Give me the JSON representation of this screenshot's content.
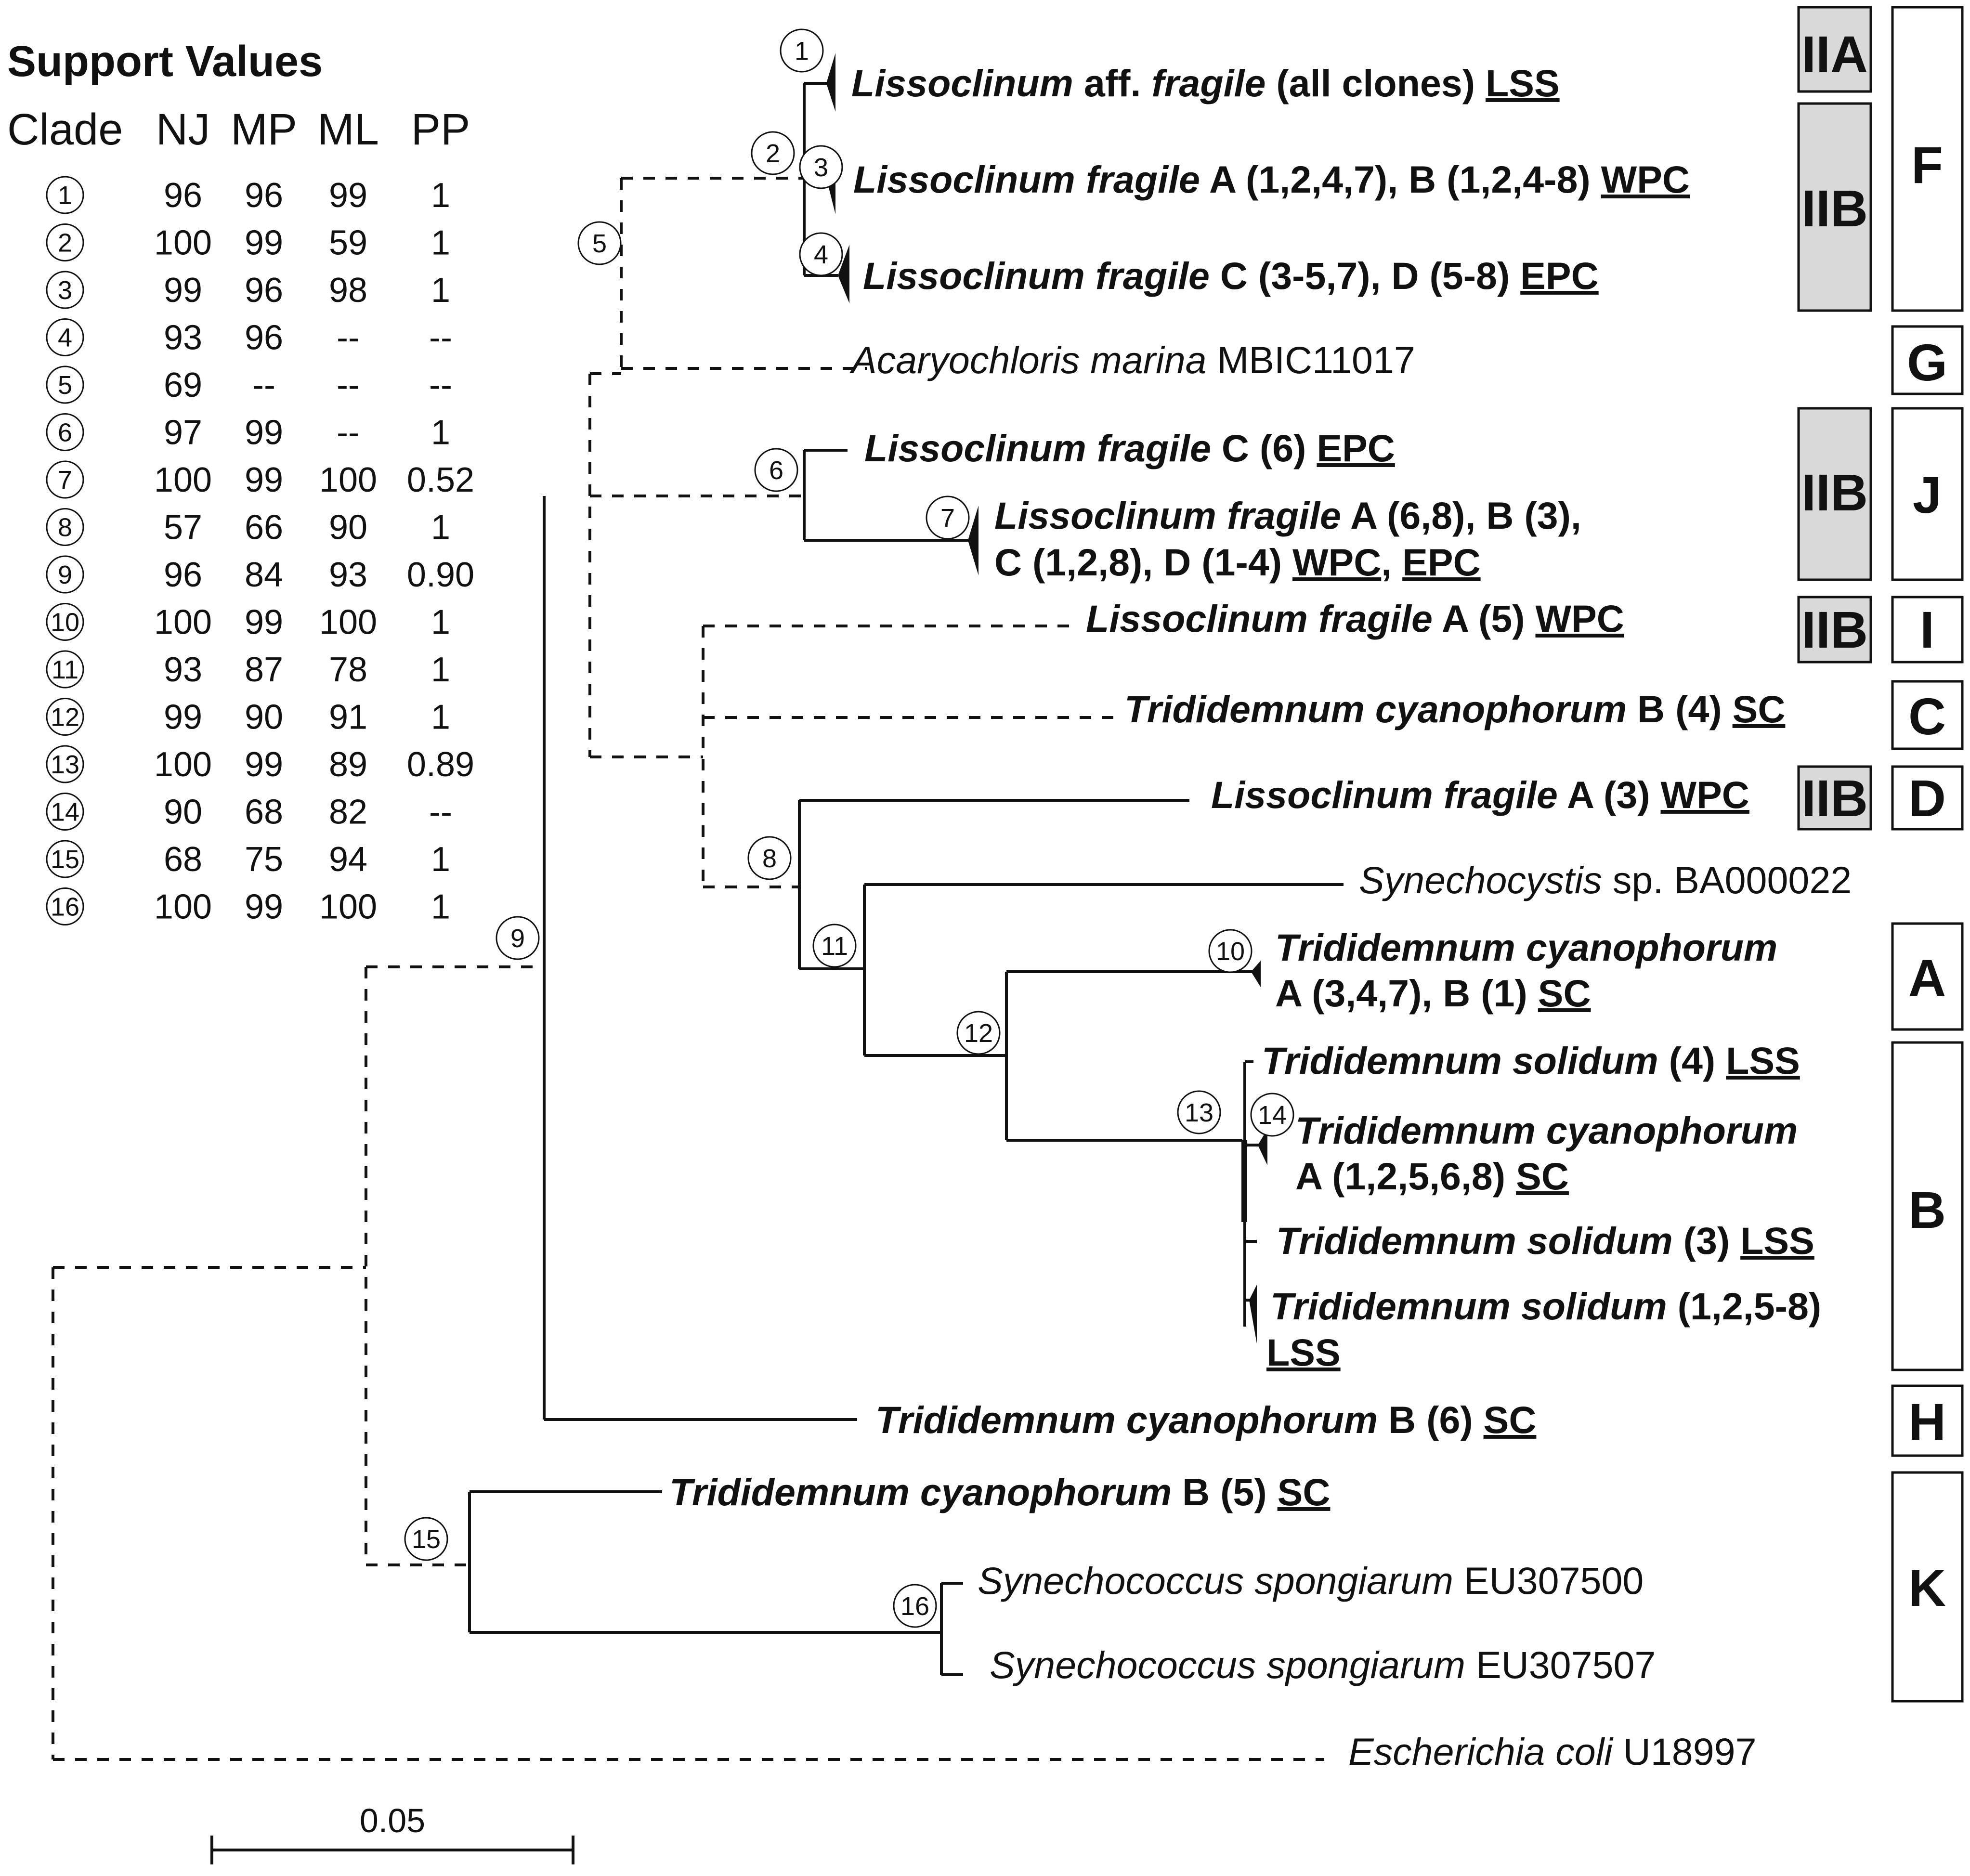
{
  "support_table": {
    "title": "Support Values",
    "headers": [
      "Clade",
      "NJ",
      "MP",
      "ML",
      "PP"
    ],
    "rows": [
      {
        "clade": "1",
        "nj": "96",
        "mp": "96",
        "ml": "99",
        "pp": "1"
      },
      {
        "clade": "2",
        "nj": "100",
        "mp": "99",
        "ml": "59",
        "pp": "1"
      },
      {
        "clade": "3",
        "nj": "99",
        "mp": "96",
        "ml": "98",
        "pp": "1"
      },
      {
        "clade": "4",
        "nj": "93",
        "mp": "96",
        "ml": "--",
        "pp": "--"
      },
      {
        "clade": "5",
        "nj": "69",
        "mp": "--",
        "ml": "--",
        "pp": "--"
      },
      {
        "clade": "6",
        "nj": "97",
        "mp": "99",
        "ml": "--",
        "pp": "1"
      },
      {
        "clade": "7",
        "nj": "100",
        "mp": "99",
        "ml": "100",
        "pp": "0.52"
      },
      {
        "clade": "8",
        "nj": "57",
        "mp": "66",
        "ml": "90",
        "pp": "1"
      },
      {
        "clade": "9",
        "nj": "96",
        "mp": "84",
        "ml": "93",
        "pp": "0.90"
      },
      {
        "clade": "10",
        "nj": "100",
        "mp": "99",
        "ml": "100",
        "pp": "1"
      },
      {
        "clade": "11",
        "nj": "93",
        "mp": "87",
        "ml": "78",
        "pp": "1"
      },
      {
        "clade": "12",
        "nj": "99",
        "mp": "90",
        "ml": "91",
        "pp": "1"
      },
      {
        "clade": "13",
        "nj": "100",
        "mp": "99",
        "ml": "89",
        "pp": "0.89"
      },
      {
        "clade": "14",
        "nj": "90",
        "mp": "68",
        "ml": "82",
        "pp": "--"
      },
      {
        "clade": "15",
        "nj": "68",
        "mp": "75",
        "ml": "94",
        "pp": "1"
      },
      {
        "clade": "16",
        "nj": "100",
        "mp": "99",
        "ml": "100",
        "pp": "1"
      }
    ]
  },
  "taxa": {
    "t1": {
      "species": "Lissoclinum",
      "rest": " aff. ",
      "species2": "fragile",
      "detail": " (all clones) ",
      "site": "LSS"
    },
    "t2": {
      "species": "Lissoclinum fragile",
      "detail": " A (1,2,4,7), B (1,2,4-8) ",
      "site": "WPC"
    },
    "t3": {
      "species": "Lissoclinum fragile",
      "detail": " C (3-5,7), D (5-8) ",
      "site": "EPC"
    },
    "t4": {
      "species": "Acaryochloris marina",
      "detail": " MBIC11017"
    },
    "t5": {
      "species": "Lissoclinum fragile",
      "detail": " C (6) ",
      "site": "EPC"
    },
    "t6": {
      "species": "Lissoclinum fragile",
      "detail": " A (6,8), B (3),",
      "line2": "C (1,2,8), D (1-4) ",
      "site": "WPC",
      "sep": ", ",
      "site2": "EPC"
    },
    "t7": {
      "species": "Lissoclinum fragile",
      "detail": " A (5) ",
      "site": "WPC"
    },
    "t8": {
      "species": "Trididemnum cyanophorum",
      "detail": " B (4) ",
      "site": "SC"
    },
    "t9": {
      "species": "Lissoclinum fragile",
      "detail": " A (3) ",
      "site": "WPC"
    },
    "t10": {
      "species": "Synechocystis",
      "detail": " sp. BA000022"
    },
    "t11": {
      "species": "Trididemnum cyanophorum",
      "line2": "A (3,4,7), B (1) ",
      "site": "SC"
    },
    "t12": {
      "species": "Trididemnum solidum",
      "detail": " (4) ",
      "site": "LSS"
    },
    "t13": {
      "species": "Trididemnum cyanophorum",
      "line2": "A (1,2,5,6,8) ",
      "site": "SC"
    },
    "t14": {
      "species": "Trididemnum solidum",
      "detail": " (3) ",
      "site": "LSS"
    },
    "t15": {
      "species": "Trididemnum solidum",
      "detail": " (1,2,5-8)",
      "site": "LSS"
    },
    "t16": {
      "species": "Trididemnum cyanophorum",
      "detail": " B (6) ",
      "site": "SC"
    },
    "t17": {
      "species": "Trididemnum cyanophorum",
      "detail": " B (5) ",
      "site": "SC"
    },
    "t18": {
      "species": "Synechococcus spongiarum",
      "detail": " EU307500"
    },
    "t19": {
      "species": "Synechococcus spongiarum",
      "detail": " EU307507"
    },
    "t20": {
      "species": "Escherichia coli",
      "detail": " U18997"
    }
  },
  "node_labels": [
    "1",
    "2",
    "3",
    "4",
    "5",
    "6",
    "7",
    "8",
    "9",
    "10",
    "11",
    "12",
    "13",
    "14",
    "15",
    "16"
  ],
  "clade_boxes": {
    "F": "F",
    "G": "G",
    "J": "J",
    "I": "I",
    "C": "C",
    "D": "D",
    "A": "A",
    "B": "B",
    "H": "H",
    "K": "K"
  },
  "group_boxes": {
    "iia": "IIA",
    "iib_f": "IIB",
    "iib_j": "IIB",
    "iib_i": "IIB",
    "iib_d": "IIB"
  },
  "group_box_fill": "#d9d9d9",
  "scale_bar": {
    "label": "0.05"
  }
}
